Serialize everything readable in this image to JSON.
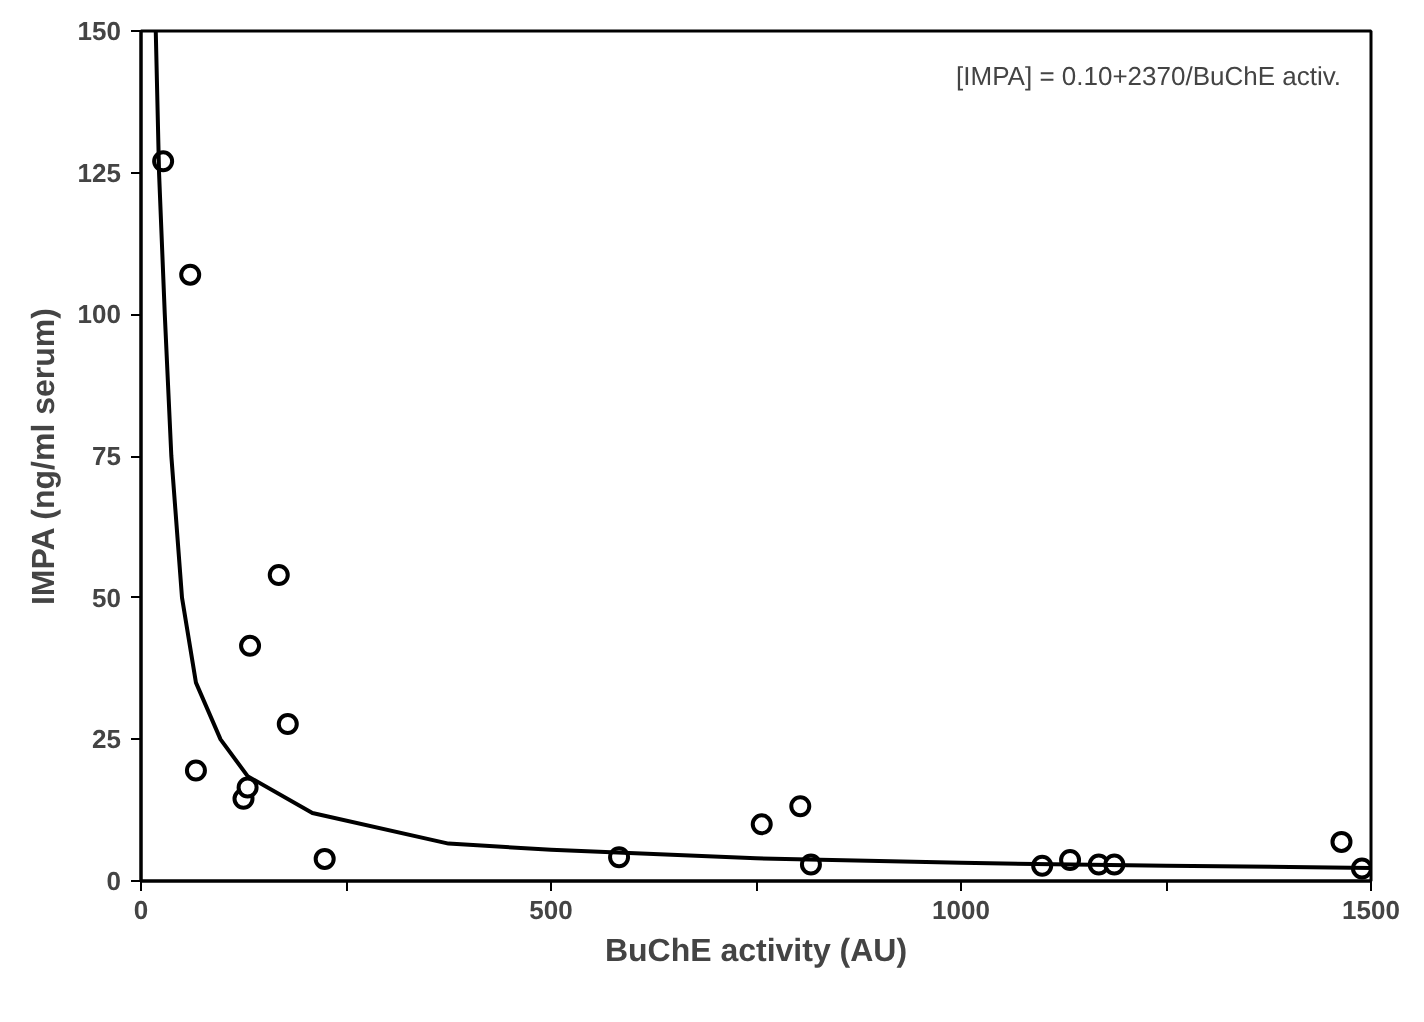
{
  "chart_data": {
    "type": "scatter",
    "xlabel": "BuChE activity (AU)",
    "ylabel": "IMPA (ng/ml serum)",
    "annotations": [
      "[IMPA] = 0.10+2370/BuChE activ."
    ],
    "xlim": [
      0,
      1500
    ],
    "ylim": [
      0,
      150
    ],
    "xticks": [
      0,
      {
        "value": 250,
        "label": null
      },
      500,
      {
        "value": 750,
        "label": null
      },
      1000,
      {
        "value": 1250,
        "label": null
      },
      1500
    ],
    "yticks": [
      0,
      25,
      50,
      75,
      100,
      125,
      150
    ],
    "grid": false,
    "marker": "circle",
    "series": [
      {
        "color": "#000000",
        "x": [
          27,
          60,
          67,
          125,
          130,
          133,
          168,
          179,
          224,
          583,
          757,
          804,
          817,
          1099,
          1133,
          1168,
          1187,
          1464,
          1489
        ],
        "values": [
          127,
          107,
          19.5,
          14.5,
          16.5,
          41.5,
          54,
          27.7,
          3.9,
          4.2,
          10,
          13.2,
          2.9,
          2.7,
          3.7,
          2.9,
          2.9,
          6.9,
          2.2
        ]
      },
      {
        "type": "line",
        "color": "#000000",
        "marker": "none",
        "line_style": "solid",
        "x": [
          18,
          22,
          29,
          37,
          50,
          67,
          97,
          130,
          209,
          375,
          500,
          750,
          1000,
          1250,
          1500
        ],
        "values": [
          150,
          125,
          100,
          75,
          50,
          35,
          25,
          18.5,
          12,
          6.6,
          5.5,
          4,
          3.2,
          2.7,
          2.3
        ]
      }
    ]
  }
}
